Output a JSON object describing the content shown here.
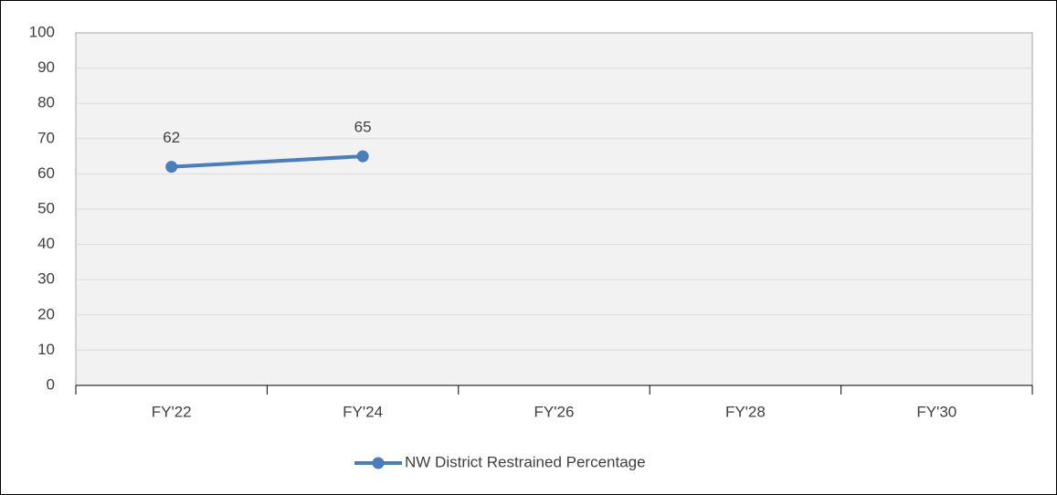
{
  "chart_data": {
    "type": "line",
    "categories": [
      "FY'22",
      "FY'24",
      "FY'26",
      "FY'28",
      "FY'30"
    ],
    "series": [
      {
        "name": "NW District Restrained Percentage",
        "color": "#4a7ebb",
        "values": [
          62,
          65,
          null,
          null,
          null
        ]
      }
    ],
    "ylim": [
      0,
      100
    ],
    "yticks": [
      0,
      10,
      20,
      30,
      40,
      50,
      60,
      70,
      80,
      90,
      100
    ],
    "grid": true,
    "legend": "bottom",
    "data_labels": true
  }
}
